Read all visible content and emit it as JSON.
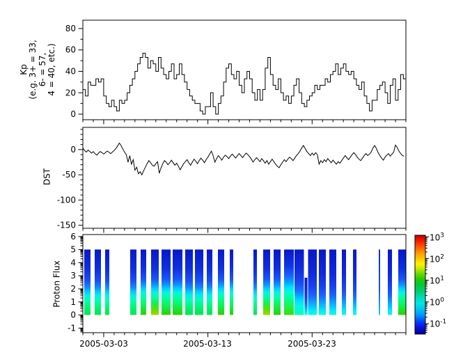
{
  "xaxis": {
    "total_days": 31,
    "minor_step_days": 1,
    "major": [
      {
        "day": 2,
        "label": "2005-03-03"
      },
      {
        "day": 12,
        "label": "2005-03-13"
      },
      {
        "day": 22,
        "label": "2005-03-23"
      }
    ]
  },
  "chart_data": [
    {
      "type": "line",
      "subtype": "step",
      "name": "Kp",
      "ylabel_lines": [
        "Kp",
        "(e.g. 3+ = 33,",
        "6- = 57,",
        "4 = 40, etc.)"
      ],
      "line_color": "#000000",
      "x_start_day": 0,
      "x_step_days": 0.25,
      "ylim": [
        -5.2,
        87.8
      ],
      "yticks": [
        {
          "v": 0,
          "label": "0"
        },
        {
          "v": 20,
          "label": "20"
        },
        {
          "v": 40,
          "label": "40"
        },
        {
          "v": 60,
          "label": "60"
        },
        {
          "v": 80,
          "label": "80"
        }
      ],
      "yticks_minor": [
        10,
        30,
        50,
        70
      ],
      "values": [
        23,
        17,
        30,
        27,
        27,
        33,
        30,
        33,
        17,
        10,
        7,
        13,
        7,
        3,
        13,
        10,
        13,
        20,
        27,
        33,
        40,
        47,
        53,
        57,
        53,
        43,
        50,
        47,
        40,
        53,
        43,
        37,
        33,
        40,
        47,
        33,
        37,
        47,
        37,
        30,
        23,
        17,
        13,
        10,
        10,
        3,
        0,
        7,
        7,
        20,
        7,
        0,
        10,
        17,
        30,
        43,
        47,
        37,
        33,
        40,
        27,
        20,
        33,
        40,
        33,
        20,
        13,
        23,
        13,
        23,
        43,
        53,
        37,
        27,
        23,
        33,
        20,
        13,
        17,
        10,
        17,
        27,
        33,
        20,
        10,
        7,
        13,
        17,
        20,
        27,
        23,
        27,
        27,
        33,
        30,
        37,
        40,
        47,
        37,
        43,
        47,
        40,
        37,
        40,
        33,
        27,
        23,
        30,
        17,
        10,
        3,
        13,
        13,
        23,
        27,
        30,
        20,
        10,
        27,
        33,
        13,
        23,
        37,
        33
      ]
    },
    {
      "type": "line",
      "name": "DST",
      "ylabel": "DST",
      "line_color": "#000000",
      "x_start_day": 0,
      "x_step_days": 0.1666667,
      "ylim": [
        -156,
        44
      ],
      "yticks": [
        {
          "v": 0,
          "label": "0"
        },
        {
          "v": -50,
          "label": "-50"
        },
        {
          "v": -100,
          "label": "-100"
        },
        {
          "v": -150,
          "label": "-150"
        }
      ],
      "yticks_minor_step": 10,
      "values": [
        3,
        -2,
        -5,
        -1,
        -4,
        -7,
        -4,
        -8,
        -11,
        -7,
        -4,
        -6,
        -9,
        -6,
        -3,
        -5,
        -8,
        -5,
        -2,
        2,
        7,
        13,
        8,
        1,
        -5,
        -10,
        -25,
        -12,
        -29,
        -20,
        -41,
        -35,
        -48,
        -44,
        -50,
        -42,
        -35,
        -28,
        -22,
        -26,
        -31,
        -33,
        -28,
        -24,
        -47,
        -36,
        -28,
        -22,
        -25,
        -30,
        -26,
        -21,
        -26,
        -31,
        -27,
        -33,
        -40,
        -34,
        -28,
        -24,
        -20,
        -26,
        -31,
        -25,
        -19,
        -23,
        -28,
        -22,
        -17,
        -21,
        -26,
        -20,
        -15,
        -9,
        -3,
        -12,
        -25,
        -18,
        -12,
        -16,
        -21,
        -15,
        -11,
        -14,
        -18,
        -13,
        -9,
        -13,
        -17,
        -12,
        -8,
        -12,
        -16,
        -11,
        -7,
        -10,
        -14,
        -19,
        -25,
        -20,
        -16,
        -20,
        -24,
        -18,
        -22,
        -27,
        -22,
        -29,
        -24,
        -19,
        -24,
        -29,
        -33,
        -36,
        -30,
        -25,
        -20,
        -24,
        -19,
        -15,
        -18,
        -22,
        -17,
        -12,
        -8,
        -3,
        3,
        8,
        2,
        -4,
        -8,
        -12,
        -7,
        -11,
        -6,
        -10,
        -29,
        -22,
        -26,
        -20,
        -24,
        -18,
        -22,
        -26,
        -21,
        -25,
        -29,
        -24,
        -27,
        -22,
        -17,
        -12,
        -16,
        -20,
        -15,
        -10,
        -6,
        -10,
        -15,
        -19,
        -22,
        -17,
        -12,
        -8,
        -12,
        -9,
        -5,
        3,
        8,
        2,
        -6,
        -12,
        -17,
        -21,
        -15,
        -11,
        -8,
        -13,
        -9,
        -5,
        9,
        4,
        -3,
        -8,
        -12,
        -13
      ]
    },
    {
      "type": "heatmap",
      "name": "Proton Flux",
      "ylabel": "Proton Flux",
      "ylim": [
        -1.35,
        6.15
      ],
      "yticks": [
        {
          "v": -1,
          "label": "-1"
        },
        {
          "v": 0,
          "label": "0"
        },
        {
          "v": 1,
          "label": "1"
        },
        {
          "v": 2,
          "label": "2"
        },
        {
          "v": 3,
          "label": "3"
        },
        {
          "v": 4,
          "label": "4"
        },
        {
          "v": 5,
          "label": "5"
        },
        {
          "v": 6,
          "label": "6"
        }
      ],
      "log_minor_ticks": true,
      "bar_span": [
        0,
        5
      ],
      "bars": [
        {
          "d0": 0.13,
          "d1": 0.73,
          "p": "std"
        },
        {
          "d0": 1.14,
          "d1": 1.74,
          "p": "std"
        },
        {
          "d0": 2.14,
          "d1": 2.54,
          "p": "std"
        },
        {
          "d0": 4.54,
          "d1": 5.14,
          "p": "std"
        },
        {
          "d0": 5.54,
          "d1": 6.08,
          "p": "green"
        },
        {
          "d0": 6.55,
          "d1": 7.28,
          "p": "yellow"
        },
        {
          "d0": 7.55,
          "d1": 8.42,
          "p": "green"
        },
        {
          "d0": 8.62,
          "d1": 9.55,
          "p": "green"
        },
        {
          "d0": 9.82,
          "d1": 10.55,
          "p": "std"
        },
        {
          "d0": 10.76,
          "d1": 11.56,
          "p": "std"
        },
        {
          "d0": 11.89,
          "d1": 12.42,
          "p": "std"
        },
        {
          "d0": 12.96,
          "d1": 13.56,
          "p": "green"
        },
        {
          "d0": 14.1,
          "d1": 14.43,
          "p": "green"
        },
        {
          "d0": 16.37,
          "d1": 16.7,
          "p": "std"
        },
        {
          "d0": 17.3,
          "d1": 17.97,
          "p": "yellow"
        },
        {
          "d0": 18.3,
          "d1": 18.97,
          "p": "green"
        },
        {
          "d0": 19.31,
          "d1": 20.24,
          "p": "wedge"
        },
        {
          "d0": 20.31,
          "d1": 21.22,
          "p": "cyan2"
        },
        {
          "d0": 21.28,
          "d1": 21.55,
          "p": "plain",
          "top": 2.86
        },
        {
          "d0": 21.62,
          "d1": 22.44,
          "p": "plain"
        },
        {
          "d0": 22.65,
          "d1": 23.31,
          "p": "plain"
        },
        {
          "d0": 23.65,
          "d1": 24.31,
          "p": "plain"
        },
        {
          "d0": 24.85,
          "d1": 25.25,
          "p": "plain"
        },
        {
          "d0": 25.92,
          "d1": 26.25,
          "p": "plain"
        },
        {
          "d0": 28.39,
          "d1": 28.52,
          "p": "thin"
        },
        {
          "d0": 29.26,
          "d1": 29.66,
          "p": "plain"
        },
        {
          "d0": 30.26,
          "d1": 31.0,
          "p": "green"
        }
      ],
      "profiles": {
        "std": [
          [
            0,
            "#0718c8"
          ],
          [
            30,
            "#0f2fe0"
          ],
          [
            48,
            "#1a50f5"
          ],
          [
            58,
            "#0f8cff"
          ],
          [
            64,
            "#00c8ff"
          ],
          [
            70,
            "#00f0e8"
          ],
          [
            78,
            "#00ffb4"
          ],
          [
            88,
            "#00f573"
          ],
          [
            100,
            "#00e650"
          ]
        ],
        "green": [
          [
            0,
            "#0718c8"
          ],
          [
            28,
            "#0f2fe0"
          ],
          [
            45,
            "#1a55f5"
          ],
          [
            54,
            "#0f96ff"
          ],
          [
            60,
            "#00d2ff"
          ],
          [
            66,
            "#00f8dc"
          ],
          [
            74,
            "#00ffa0"
          ],
          [
            84,
            "#0cf55f"
          ],
          [
            100,
            "#2ad100"
          ]
        ],
        "yellow": [
          [
            0,
            "#0718c8"
          ],
          [
            28,
            "#0f2fe0"
          ],
          [
            45,
            "#1a55f5"
          ],
          [
            54,
            "#0f96ff"
          ],
          [
            60,
            "#00d2ff"
          ],
          [
            66,
            "#00f8dc"
          ],
          [
            73,
            "#00ffa0"
          ],
          [
            82,
            "#16f050"
          ],
          [
            92,
            "#5ee000"
          ],
          [
            100,
            "#a0d800"
          ]
        ],
        "wedge": [
          [
            0,
            "#0718c8"
          ],
          [
            24,
            "#0f35e6"
          ],
          [
            40,
            "#1a64ff"
          ],
          [
            50,
            "#00a5ff"
          ],
          [
            58,
            "#00e0ff"
          ],
          [
            66,
            "#00ffd2"
          ],
          [
            76,
            "#00ff8c"
          ],
          [
            88,
            "#1ef04a"
          ],
          [
            100,
            "#3cdc00"
          ]
        ],
        "plain": [
          [
            0,
            "#0718c8"
          ],
          [
            35,
            "#0f28dc"
          ],
          [
            55,
            "#1440f0"
          ],
          [
            70,
            "#1a64ff"
          ],
          [
            80,
            "#0f9cff"
          ],
          [
            88,
            "#00ccff"
          ],
          [
            94,
            "#00ecff"
          ],
          [
            100,
            "#00ffd8"
          ]
        ],
        "cyan2": [
          [
            0,
            "#0718c8"
          ],
          [
            30,
            "#0f2de0"
          ],
          [
            50,
            "#1648f0"
          ],
          [
            62,
            "#1a6eff"
          ],
          [
            70,
            "#00aaff"
          ],
          [
            78,
            "#00dcff"
          ],
          [
            86,
            "#00f8e6"
          ],
          [
            100,
            "#00ffb8"
          ]
        ],
        "thin": [
          [
            0,
            "#0f2de0"
          ],
          [
            60,
            "#1a50f5"
          ],
          [
            100,
            "#00d2ff"
          ]
        ]
      },
      "colorbar": {
        "log_range": [
          -1.48,
          3.07
        ],
        "ticks": [
          {
            "log": 3,
            "base": "10",
            "exp": "3"
          },
          {
            "log": 2,
            "base": "10",
            "exp": "2"
          },
          {
            "log": 1,
            "base": "10",
            "exp": "1"
          },
          {
            "log": 0,
            "base": "10",
            "exp": "0"
          },
          {
            "log": -1,
            "base": "10",
            "exp": "-1"
          }
        ],
        "gradient": [
          [
            0,
            "#c80000"
          ],
          [
            5,
            "#ee1500"
          ],
          [
            12,
            "#ff5a00"
          ],
          [
            18,
            "#ff9900"
          ],
          [
            24,
            "#ffcc00"
          ],
          [
            29,
            "#fff200"
          ],
          [
            33,
            "#cdee00"
          ],
          [
            38,
            "#7add00"
          ],
          [
            44,
            "#2bcc00"
          ],
          [
            50,
            "#00c832"
          ],
          [
            57,
            "#00cd78"
          ],
          [
            63,
            "#00dcb4"
          ],
          [
            69,
            "#00e6e0"
          ],
          [
            75,
            "#00c3f0"
          ],
          [
            81,
            "#0096ff"
          ],
          [
            87,
            "#0046ff"
          ],
          [
            93,
            "#0d13dc"
          ],
          [
            100,
            "#000096"
          ]
        ]
      }
    }
  ]
}
